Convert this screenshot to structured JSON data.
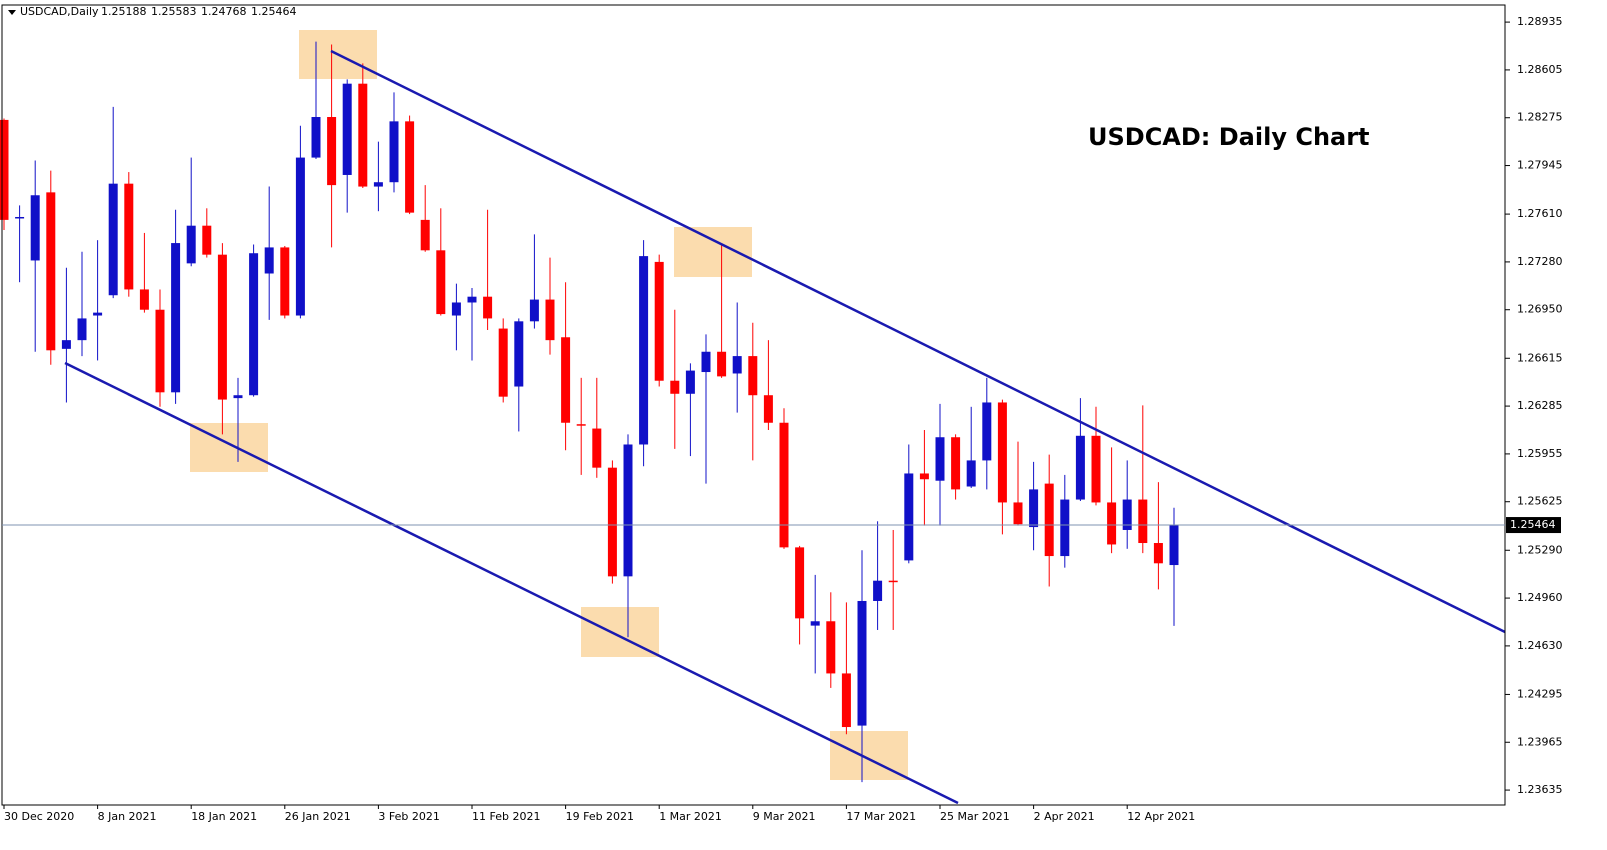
{
  "chart_data": {
    "type": "candlestick",
    "symbol": "USDCAD,Daily",
    "title": "USDCAD: Daily Chart",
    "up_color": "#1010c8",
    "down_color": "#ff0000",
    "categories": [
      "30 Dec 2020",
      null,
      null,
      null,
      null,
      null,
      "8 Jan 2021",
      null,
      null,
      null,
      null,
      null,
      "18 Jan 2021",
      null,
      null,
      null,
      null,
      null,
      "26 Jan 2021",
      null,
      null,
      null,
      null,
      null,
      "3 Feb 2021",
      null,
      null,
      null,
      null,
      null,
      "11 Feb 2021",
      null,
      null,
      null,
      null,
      null,
      "19 Feb 2021",
      null,
      null,
      null,
      null,
      null,
      "1 Mar 2021",
      null,
      null,
      null,
      null,
      null,
      "9 Mar 2021",
      null,
      null,
      null,
      null,
      null,
      "17 Mar 2021",
      null,
      null,
      null,
      null,
      null,
      "25 Mar 2021",
      null,
      null,
      null,
      null,
      null,
      "2 Apr 2021",
      null,
      null,
      null,
      null,
      null,
      "12 Apr 2021",
      null,
      null,
      null
    ],
    "open": [
      1.2826,
      1.2758,
      1.2729,
      1.2776,
      1.2668,
      1.2674,
      1.2691,
      1.2705,
      1.2782,
      1.2709,
      1.2695,
      1.2638,
      1.2727,
      1.2753,
      1.2733,
      1.2634,
      1.2636,
      1.272,
      1.2738,
      1.2691,
      1.28,
      1.2828,
      1.2788,
      1.2851,
      1.278,
      1.2783,
      1.2825,
      1.2757,
      1.2736,
      1.2691,
      1.27,
      1.2704,
      1.2682,
      1.2642,
      1.2687,
      1.2702,
      1.2676,
      1.2616,
      1.2613,
      1.2586,
      1.2511,
      1.2602,
      1.2728,
      1.2646,
      1.2637,
      1.2652,
      1.2666,
      1.2651,
      1.2663,
      1.2636,
      1.2617,
      1.2531,
      1.2477,
      1.248,
      1.2444,
      1.2408,
      1.2494,
      1.2508,
      1.2522,
      1.2582,
      1.2577,
      1.2607,
      1.2573,
      1.2591,
      1.2631,
      1.2562,
      1.2545,
      1.2575,
      1.2525,
      1.2564,
      1.2608,
      1.2562,
      1.2543,
      1.2564,
      1.2534,
      1.25188
    ],
    "high": [
      1.2827,
      1.2767,
      1.2798,
      1.2791,
      1.2724,
      1.2735,
      1.2743,
      1.2835,
      1.279,
      1.2748,
      1.2709,
      1.2764,
      1.28,
      1.2765,
      1.2741,
      1.2648,
      1.274,
      1.278,
      1.2739,
      1.2822,
      1.288,
      1.2878,
      1.2854,
      1.2865,
      1.2811,
      1.2845,
      1.2829,
      1.2781,
      1.2765,
      1.2713,
      1.271,
      1.2764,
      1.2689,
      1.2689,
      1.2747,
      1.2731,
      1.2714,
      1.2648,
      1.2648,
      1.2591,
      1.2609,
      1.2743,
      1.2733,
      1.2695,
      1.2658,
      1.2678,
      1.274,
      1.27,
      1.2686,
      1.2674,
      1.2627,
      1.2532,
      1.2512,
      1.25,
      1.2493,
      1.2529,
      1.2549,
      1.2543,
      1.2602,
      1.2612,
      1.263,
      1.2609,
      1.2628,
      1.2648,
      1.2633,
      1.2604,
      1.259,
      1.2595,
      1.2581,
      1.2634,
      1.2628,
      1.26,
      1.2591,
      1.2629,
      1.2576,
      1.25583
    ],
    "low": [
      1.275,
      1.2714,
      1.2666,
      1.2657,
      1.2631,
      1.2663,
      1.266,
      1.2703,
      1.2704,
      1.2693,
      1.2628,
      1.263,
      1.2725,
      1.2731,
      1.2609,
      1.259,
      1.2635,
      1.2688,
      1.2689,
      1.2689,
      1.2799,
      1.2738,
      1.2762,
      1.2779,
      1.2763,
      1.2776,
      1.2761,
      1.2735,
      1.2691,
      1.2667,
      1.266,
      1.2681,
      1.2631,
      1.2611,
      1.2682,
      1.2664,
      1.2598,
      1.2581,
      1.2579,
      1.2506,
      1.2469,
      1.2587,
      1.2642,
      1.2599,
      1.2594,
      1.2575,
      1.2648,
      1.2624,
      1.2591,
      1.2612,
      1.253,
      1.2464,
      1.2444,
      1.2434,
      1.2402,
      1.2369,
      1.2474,
      1.2474,
      1.252,
      1.2546,
      1.2546,
      1.2564,
      1.2572,
      1.2571,
      1.254,
      1.2546,
      1.2529,
      1.2504,
      1.2517,
      1.2563,
      1.256,
      1.2527,
      1.253,
      1.2527,
      1.2502,
      1.24768
    ],
    "close": [
      1.2757,
      1.2759,
      1.2774,
      1.2667,
      1.2674,
      1.2689,
      1.2693,
      1.2782,
      1.2709,
      1.2695,
      1.2638,
      1.2741,
      1.2753,
      1.2733,
      1.2633,
      1.2636,
      1.2734,
      1.2738,
      1.2691,
      1.28,
      1.2828,
      1.2781,
      1.2851,
      1.278,
      1.2783,
      1.2825,
      1.2762,
      1.2736,
      1.2692,
      1.27,
      1.2704,
      1.2689,
      1.2635,
      1.2687,
      1.2702,
      1.2674,
      1.2617,
      1.2615,
      1.2586,
      1.2511,
      1.2602,
      1.2732,
      1.2646,
      1.2637,
      1.2653,
      1.2666,
      1.2649,
      1.2663,
      1.2636,
      1.2617,
      1.2531,
      1.2482,
      1.248,
      1.2444,
      1.2407,
      1.2494,
      1.2508,
      1.2507,
      1.2582,
      1.2578,
      1.2607,
      1.2571,
      1.2591,
      1.2631,
      1.2562,
      1.2547,
      1.2571,
      1.2525,
      1.2564,
      1.2608,
      1.2562,
      1.2533,
      1.2564,
      1.2534,
      1.252,
      1.25464
    ],
    "ylim": [
      1.23532,
      1.29053
    ],
    "yticks": [
      1.28935,
      1.28605,
      1.28275,
      1.27945,
      {
        "value": 1.2761,
        "label": "1.27610"
      },
      {
        "value": 1.2728,
        "label": "1.27280"
      },
      {
        "value": 1.2695,
        "label": "1.26950"
      },
      1.26615,
      1.26285,
      1.25955,
      1.25625,
      {
        "value": 1.2529,
        "label": "1.25290"
      },
      {
        "value": 1.2496,
        "label": "1.24960"
      },
      {
        "value": 1.2463,
        "label": "1.24630"
      },
      1.24295,
      1.23965,
      1.23635
    ]
  }
}
